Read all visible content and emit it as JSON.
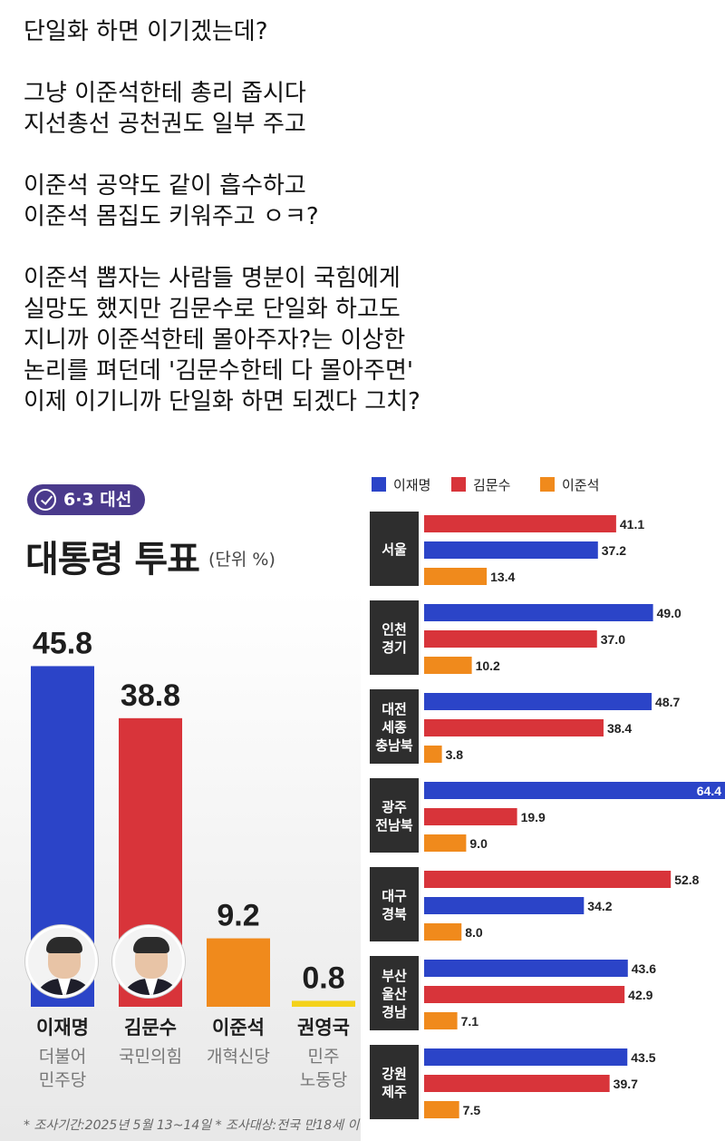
{
  "post": {
    "lines": [
      "단일화 하면 이기겠는데?",
      "",
      "그냥 이준석한테 총리 줍시다",
      "지선총선 공천권도 일부 주고",
      "",
      "이준석 공약도 같이 흡수하고",
      "이준석 몸집도 키워주고 ㅇㅋ?",
      "",
      "이준석 뽑자는 사람들 명분이 국힘에게",
      "실망도 했지만 김문수로 단일화 하고도",
      "지니까 이준석한테 몰아주자?는 이상한",
      "논리를 펴던데 '김문수한테 다 몰아주면'",
      "이제 이기니까 단일화 하면 되겠다 그치?"
    ]
  },
  "colors": {
    "lee_jaemyung": "#2b44c8",
    "kim_moonsoo": "#d8343a",
    "lee_junseok": "#f08a1c",
    "kwon_youngguk": "#f4d21a",
    "badge": "#4a3a8c",
    "region_box": "#2e2e2e"
  },
  "icons": {
    "badge": "ballot-check-icon"
  },
  "chart_data": [
    {
      "type": "bar",
      "badge": "6·3 대선",
      "title": "대통령 투표",
      "unit": "(단위 %)",
      "categories": [
        "이재명",
        "김문수",
        "이준석",
        "권영국"
      ],
      "parties": [
        "더불어\n민주당",
        "국민의힘",
        "개혁신당",
        "민주\n노동당"
      ],
      "values": [
        45.8,
        38.8,
        9.2,
        0.8
      ],
      "value_labels": [
        "45.8",
        "38.8",
        "9.2",
        "0.8"
      ],
      "footnote": "* 조사기간:2025년 5월 13~14일  * 조사대상:전국 만18세 이",
      "ylim": [
        0,
        50
      ],
      "grid": false
    },
    {
      "type": "bar",
      "orientation": "horizontal",
      "legend": [
        "이재명",
        "김문수",
        "이준석"
      ],
      "legend_position": "top-left",
      "regions": [
        {
          "label": "서울",
          "order": [
            "김문수",
            "이재명",
            "이준석"
          ],
          "values": [
            41.1,
            37.2,
            13.4
          ],
          "value_labels": [
            "41.1",
            "37.2",
            "13.4"
          ]
        },
        {
          "label": "인천\n경기",
          "order": [
            "이재명",
            "김문수",
            "이준석"
          ],
          "values": [
            49.0,
            37.0,
            10.2
          ],
          "value_labels": [
            "49.0",
            "37.0",
            "10.2"
          ]
        },
        {
          "label": "대전\n세종\n충남북",
          "order": [
            "이재명",
            "김문수",
            "이준석"
          ],
          "values": [
            48.7,
            38.4,
            3.8
          ],
          "value_labels": [
            "48.7",
            "38.4",
            "3.8"
          ]
        },
        {
          "label": "광주\n전남북",
          "order": [
            "이재명",
            "김문수",
            "이준석"
          ],
          "values": [
            64.4,
            19.9,
            9.0
          ],
          "value_labels": [
            "64.4",
            "19.9",
            "9.0"
          ]
        },
        {
          "label": "대구\n경북",
          "order": [
            "김문수",
            "이재명",
            "이준석"
          ],
          "values": [
            52.8,
            34.2,
            8.0
          ],
          "value_labels": [
            "52.8",
            "34.2",
            "8.0"
          ]
        },
        {
          "label": "부산\n울산\n경남",
          "order": [
            "이재명",
            "김문수",
            "이준석"
          ],
          "values": [
            43.6,
            42.9,
            7.1
          ],
          "value_labels": [
            "43.6",
            "42.9",
            "7.1"
          ]
        },
        {
          "label": "강원\n제주",
          "order": [
            "이재명",
            "김문수",
            "이준석"
          ],
          "values": [
            43.5,
            39.7,
            7.5
          ],
          "value_labels": [
            "43.5",
            "39.7",
            "7.5"
          ]
        }
      ],
      "xlim": [
        0,
        64.4
      ],
      "grid": false
    }
  ]
}
